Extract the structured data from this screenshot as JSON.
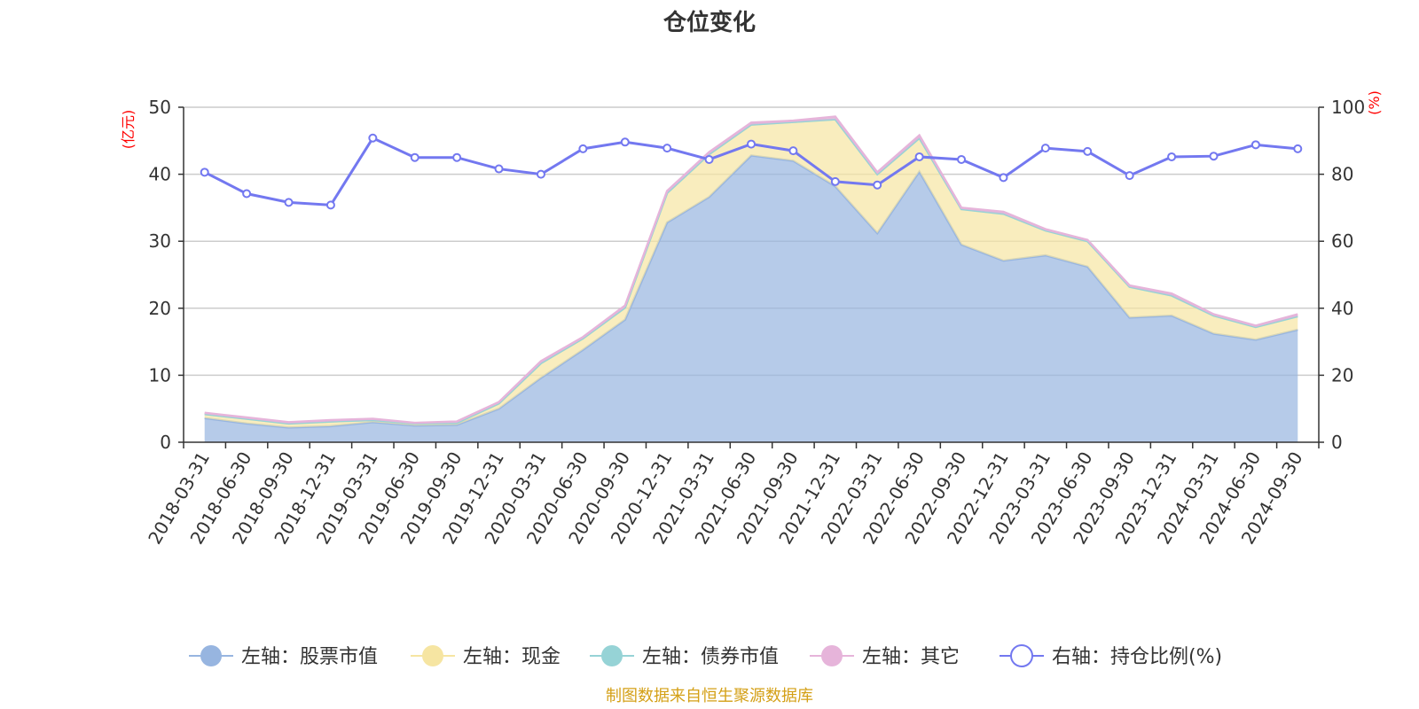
{
  "chart_data": {
    "type": "area",
    "title": "仓位变化",
    "source_note": "制图数据来自恒生聚源数据库",
    "left_axis": {
      "unit": "(亿元)",
      "ylim": [
        0,
        50
      ],
      "ticks": [
        0,
        10,
        20,
        30,
        40,
        50
      ]
    },
    "right_axis": {
      "unit": "(%)",
      "ylim": [
        0,
        100
      ],
      "ticks": [
        0,
        20,
        40,
        60,
        80,
        100
      ]
    },
    "categories": [
      "2018-03-31",
      "2018-06-30",
      "2018-09-30",
      "2018-12-31",
      "2019-03-31",
      "2019-06-30",
      "2019-09-30",
      "2019-12-31",
      "2020-03-31",
      "2020-06-30",
      "2020-09-30",
      "2020-12-31",
      "2021-03-31",
      "2021-06-30",
      "2021-09-30",
      "2021-12-31",
      "2022-03-31",
      "2022-06-30",
      "2022-09-30",
      "2022-12-31",
      "2023-03-31",
      "2023-06-30",
      "2023-09-30",
      "2023-12-31",
      "2024-03-31",
      "2024-06-30",
      "2024-09-30"
    ],
    "series": [
      {
        "name": "左轴：股票市值",
        "axis": "left",
        "stack": true,
        "color": "#97b5e0",
        "values": [
          3.6,
          2.8,
          2.2,
          2.4,
          3.0,
          2.5,
          2.6,
          5.0,
          9.6,
          13.8,
          18.3,
          32.8,
          36.6,
          42.8,
          42.0,
          38.2,
          31.2,
          40.4,
          29.5,
          27.1,
          27.9,
          26.2,
          18.6,
          18.9,
          16.2,
          15.3,
          16.8
        ]
      },
      {
        "name": "左轴：现金",
        "axis": "left",
        "stack": true,
        "color": "#f6e5a2",
        "values": [
          0.6,
          0.7,
          0.6,
          0.7,
          0.3,
          0.3,
          0.3,
          0.8,
          2.2,
          1.7,
          1.8,
          4.4,
          6.4,
          4.6,
          5.8,
          10.0,
          8.8,
          5.0,
          5.3,
          7.0,
          3.7,
          3.8,
          4.6,
          3.0,
          2.7,
          1.9,
          2.0
        ]
      },
      {
        "name": "左轴：债券市值",
        "axis": "left",
        "stack": true,
        "color": "#96d3d6",
        "values": [
          0,
          0,
          0,
          0,
          0,
          0,
          0,
          0,
          0,
          0,
          0,
          0,
          0,
          0,
          0,
          0,
          0,
          0,
          0,
          0,
          0,
          0,
          0,
          0,
          0,
          0,
          0
        ]
      },
      {
        "name": "左轴：其它",
        "axis": "left",
        "stack": true,
        "color": "#e6b4da",
        "values": [
          0.2,
          0.2,
          0.2,
          0.2,
          0.2,
          0.1,
          0.2,
          0.2,
          0.3,
          0.2,
          0.3,
          0.3,
          0.3,
          0.3,
          0.2,
          0.4,
          0.3,
          0.4,
          0.2,
          0.3,
          0.2,
          0.2,
          0.2,
          0.3,
          0.2,
          0.2,
          0.3
        ]
      },
      {
        "name": "右轴：持仓比例(%)",
        "axis": "right",
        "stack": false,
        "color": "#7378f0",
        "values": [
          80.6,
          74.2,
          71.6,
          70.8,
          90.8,
          85.0,
          85.0,
          81.6,
          80.0,
          87.6,
          89.6,
          87.8,
          84.4,
          89.0,
          87.0,
          77.8,
          76.8,
          85.2,
          84.4,
          79.0,
          87.8,
          86.8,
          79.6,
          85.2,
          85.4,
          88.8,
          87.6
        ]
      }
    ]
  }
}
